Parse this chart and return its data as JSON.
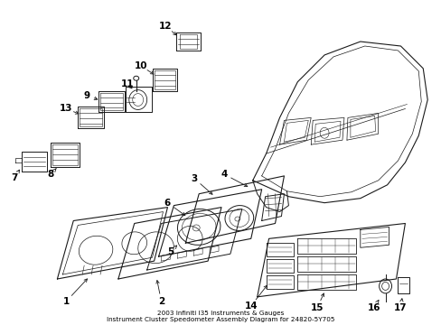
{
  "title": "2003 Infiniti I35 Instruments & Gauges\nInstrument Cluster Speedometer Assembly Diagram for 24820-5Y705",
  "background_color": "#ffffff",
  "line_color": "#1a1a1a",
  "figsize": [
    4.89,
    3.6
  ],
  "dpi": 100
}
